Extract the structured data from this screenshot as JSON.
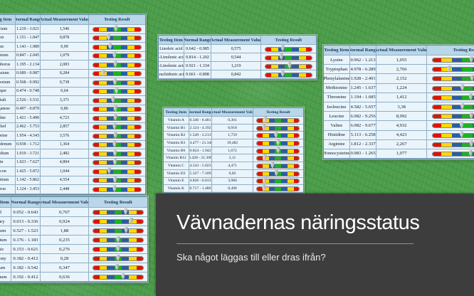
{
  "slide": {
    "title": "Vävnadernas näringsstatus",
    "subtitle": "Ska något läggas till eller dras ifrån?"
  },
  "table_headers": [
    "Testing Item",
    "Normal Range",
    "Actual Measurement Value",
    "Testing Result"
  ],
  "colors": {
    "bar_red": "#dd1400",
    "bar_yellow": "#ffd800",
    "bar_green": "#1db31d",
    "bar_blue": "#2d5d9f",
    "header_bg": "#b9d7e8",
    "row_bg": "#eaf4fb",
    "panel_bg": "#3d3d3d",
    "background_green": "#4c9d4b"
  },
  "tables": [
    {
      "id": "minerals",
      "rows": [
        {
          "item": "Calcium",
          "range": "1.219 - 3.021",
          "value": "1,546",
          "marker": 0.48
        },
        {
          "item": "Iron",
          "range": "1.151 - 1.847",
          "value": "0,878",
          "marker": 0.33
        },
        {
          "item": "Zinc",
          "range": "1.143 - 1.989",
          "value": "0,99",
          "marker": 0.36
        },
        {
          "item": "Selenium",
          "range": "0.847 - 2.045",
          "value": "1,079",
          "marker": 0.45
        },
        {
          "item": "Phosphorus",
          "range": "1.195 - 2.134",
          "value": "2,083",
          "marker": 0.47
        },
        {
          "item": "Potassium",
          "range": "0.689 - 0.987",
          "value": "0,284",
          "marker": 0.22
        },
        {
          "item": "Magnesium",
          "range": "0.568 - 0.992",
          "value": "0,738",
          "marker": 0.46
        },
        {
          "item": "Copper",
          "range": "0.474 - 0.748",
          "value": "0,64",
          "marker": 0.49
        },
        {
          "item": "Cobalt",
          "range": "2.526 - 5.531",
          "value": "3,371",
          "marker": 0.42
        },
        {
          "item": "Manganese",
          "range": "0.497 - 0.879",
          "value": "0,86",
          "marker": 0.47
        },
        {
          "item": "Iodine",
          "range": "1.421 - 5.490",
          "value": "4,723",
          "marker": 0.47
        },
        {
          "item": "Nickel",
          "range": "2.462 - 5.753",
          "value": "2,857",
          "marker": 0.45
        },
        {
          "item": "Fluorine",
          "range": "1.954 - 4.543",
          "value": "3,576",
          "marker": 0.47
        },
        {
          "item": "Molybdenum",
          "range": "0.938 - 1.712",
          "value": "1,364",
          "marker": 0.45
        },
        {
          "item": "Vanadium",
          "range": "1.019 - 3.721",
          "value": "2,482",
          "marker": 0.46
        },
        {
          "item": "Tin",
          "range": "1.023 - 7.627",
          "value": "4,894",
          "marker": 0.46
        },
        {
          "item": "Silicon",
          "range": "1.425 - 5.872",
          "value": "1,044",
          "marker": 0.34
        },
        {
          "item": "Strontium",
          "range": "1.142 - 5.862",
          "value": "4,554",
          "marker": 0.46
        },
        {
          "item": "Boron",
          "range": "1.124 - 3.453",
          "value": "2,448",
          "marker": 0.45
        }
      ]
    },
    {
      "id": "fatty",
      "rows": [
        {
          "item": "Linoleic acid",
          "range": "0.642 - 0.985",
          "value": "0,575",
          "marker": 0.38
        },
        {
          "item": "α-Linolenic acid",
          "range": "0.814 - 1.202",
          "value": "0,544",
          "marker": 0.35
        },
        {
          "item": "γ-Linolenic acid",
          "range": "0.921 - 1.334",
          "value": "1,219",
          "marker": 0.52
        },
        {
          "item": "Arachidonic acid",
          "range": "0.661 - 0.808",
          "value": "0,842",
          "marker": 0.38
        }
      ]
    },
    {
      "id": "vitamins",
      "rows": [
        {
          "item": "Vitamin A",
          "range": "0.346 - 0.401",
          "value": "0,301",
          "marker": 0.2
        },
        {
          "item": "Vitamin B1",
          "range": "2.124 - 4.192",
          "value": "0,918",
          "marker": 0.17
        },
        {
          "item": "Vitamin B2",
          "range": "1.549 - 2.213",
          "value": "1,759",
          "marker": 0.45
        },
        {
          "item": "Vitamin B3",
          "range": "14.477 - 21.348",
          "value": "19,482",
          "marker": 0.5
        },
        {
          "item": "Vitamin B6",
          "range": "0.824 - 1.942",
          "value": "1,672",
          "marker": 0.5
        },
        {
          "item": "Vitamin B12",
          "range": "6.428 - 21.396",
          "value": "2,11",
          "marker": 0.19
        },
        {
          "item": "Vitamin C",
          "range": "4.543 - 5.023",
          "value": "4,471",
          "marker": 0.37
        },
        {
          "item": "Vitamin D3",
          "range": "5.327 - 7.109",
          "value": "6,82",
          "marker": 0.46
        },
        {
          "item": "Vitamin E",
          "range": "4.826 - 6.013",
          "value": "3,966",
          "marker": 0.19
        },
        {
          "item": "Vitamin K",
          "range": "0.717 - 1.486",
          "value": "0,496",
          "marker": 0.17
        }
      ]
    },
    {
      "id": "amino",
      "rows": [
        {
          "item": "Lysine",
          "range": "0.962 - 1.213",
          "value": "1,055",
          "marker": 0.56
        },
        {
          "item": "Tryptophan",
          "range": "4.978 - 6.289",
          "value": "2,766",
          "marker": 0.24
        },
        {
          "item": "Phenylalanine",
          "range": "1.928 - 2.491",
          "value": "2,152",
          "marker": 0.57
        },
        {
          "item": "Methionine",
          "range": "1.245 - 1.637",
          "value": "1,224",
          "marker": 0.43
        },
        {
          "item": "Threonine",
          "range": "1.194 - 1.685",
          "value": "1,412",
          "marker": 0.55
        },
        {
          "item": "Isoleucine",
          "range": "4.582 - 5.657",
          "value": "3,38",
          "marker": 0.43
        },
        {
          "item": "Leucine",
          "range": "6.982 - 9.256",
          "value": "8,992",
          "marker": 0.56
        },
        {
          "item": "Valine",
          "range": "6.982 - 9.677",
          "value": "4,932",
          "marker": 0.42
        },
        {
          "item": "Histidine",
          "range": "5.113 - 6.258",
          "value": "4,423",
          "marker": 0.42
        },
        {
          "item": "Arginine",
          "range": "1.812 - 2.337",
          "value": "2,267",
          "marker": 0.56
        },
        {
          "item": "Homocysteine",
          "range": "0.983 - 1.265",
          "value": "1,077",
          "marker": 0.55
        }
      ]
    },
    {
      "id": "metals",
      "rows": [
        {
          "item": "Lead",
          "range": "0.052 - 0.643",
          "value": "0,707",
          "marker": 0.65
        },
        {
          "item": "Mercury",
          "range": "0.013 - 0.336",
          "value": "0,924",
          "marker": 0.76
        },
        {
          "item": "Cadmium",
          "range": "0.527 - 1.523",
          "value": "1,88",
          "marker": 0.66
        },
        {
          "item": "Chromium",
          "range": "0.176 - 1.183",
          "value": "0,235",
          "marker": 0.5
        },
        {
          "item": "Arsenic",
          "range": "0.153 - 0.621",
          "value": "0,276",
          "marker": 0.5
        },
        {
          "item": "Antimony",
          "range": "0.182 - 0.412",
          "value": "0,28",
          "marker": 0.5
        },
        {
          "item": "Thallium",
          "range": "0.182 - 0.542",
          "value": "0,347",
          "marker": 0.48
        },
        {
          "item": "Aluminum",
          "range": "0.192 - 0.412",
          "value": "0,636",
          "marker": 0.6
        }
      ]
    }
  ]
}
